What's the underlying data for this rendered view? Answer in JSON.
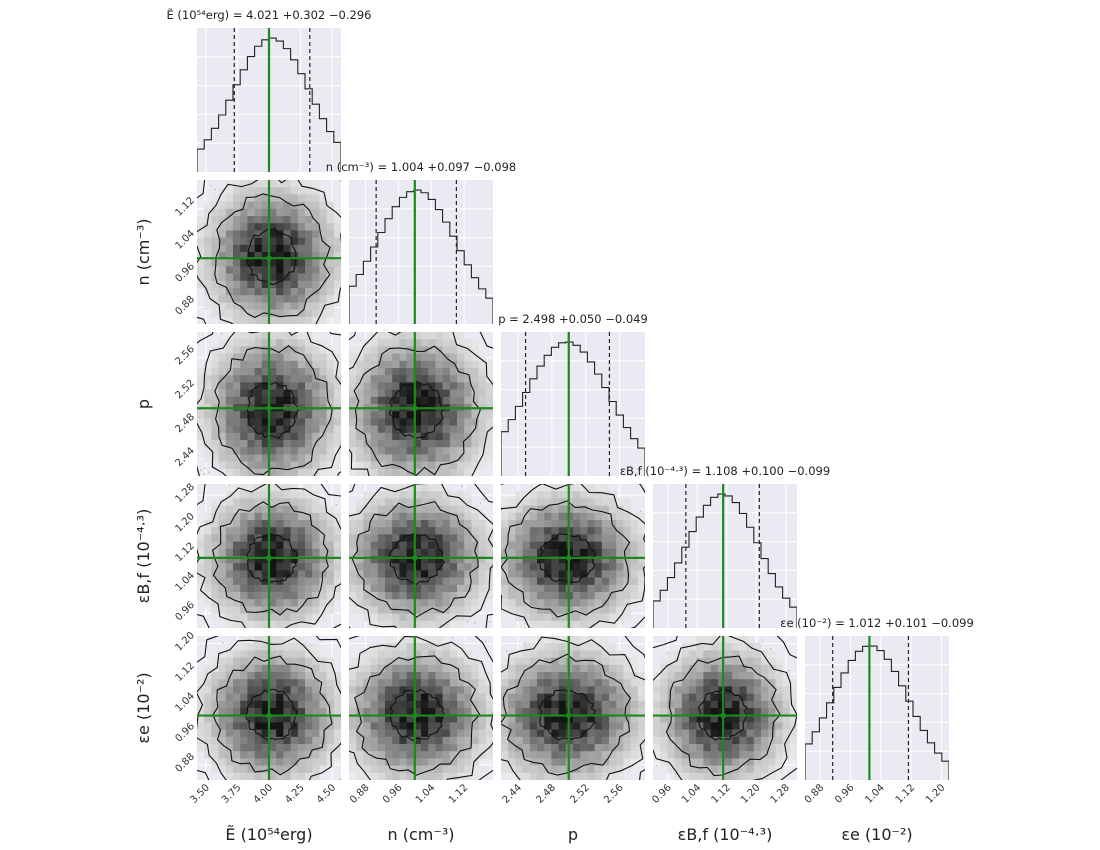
{
  "chart_data": {
    "type": "corner",
    "parameters": [
      {
        "key": "E",
        "axis_label": "Ẽ (10⁵⁴erg)",
        "title": "Ẽ (10⁵⁴erg) = 4.021 +0.302 −0.296",
        "median": 4.021,
        "err_plus": 0.302,
        "err_minus": 0.296,
        "range": [
          3.43,
          4.57
        ],
        "ticks": [
          3.5,
          3.75,
          4.0,
          4.25,
          4.5
        ],
        "tick_labels": [
          "3.50",
          "3.75",
          "4.00",
          "4.25",
          "4.50"
        ],
        "truth": 4.0
      },
      {
        "key": "n",
        "axis_label": "n (cm⁻³)",
        "title": "n (cm⁻³) = 1.004 +0.097 −0.098",
        "median": 1.004,
        "err_plus": 0.097,
        "err_minus": 0.098,
        "range": [
          0.84,
          1.19
        ],
        "ticks": [
          0.88,
          0.96,
          1.04,
          1.12
        ],
        "tick_labels": [
          "0.88",
          "0.96",
          "1.04",
          "1.12"
        ],
        "truth": 1.0
      },
      {
        "key": "p",
        "axis_label": "p",
        "title": "p = 2.498 +0.050 −0.049",
        "median": 2.498,
        "err_plus": 0.05,
        "err_minus": 0.049,
        "range": [
          2.42,
          2.59
        ],
        "ticks": [
          2.44,
          2.48,
          2.52,
          2.56
        ],
        "tick_labels": [
          "2.44",
          "2.48",
          "2.52",
          "2.56"
        ],
        "truth": 2.5
      },
      {
        "key": "eB",
        "axis_label": "εB,f (10⁻⁴·³)",
        "title": "εB,f (10⁻⁴·³) = 1.108 +0.100 −0.099",
        "median": 1.108,
        "err_plus": 0.1,
        "err_minus": 0.099,
        "range": [
          0.92,
          1.31
        ],
        "ticks": [
          0.96,
          1.04,
          1.12,
          1.2,
          1.28
        ],
        "tick_labels": [
          "0.96",
          "1.04",
          "1.12",
          "1.20",
          "1.28"
        ],
        "truth": 1.11
      },
      {
        "key": "ee",
        "axis_label": "εe (10⁻²)",
        "title": "εe (10⁻²) = 1.012 +0.101 −0.099",
        "median": 1.012,
        "err_plus": 0.101,
        "err_minus": 0.099,
        "range": [
          0.84,
          1.22
        ],
        "ticks": [
          0.88,
          0.96,
          1.04,
          1.12,
          1.2
        ],
        "tick_labels": [
          "0.88",
          "0.96",
          "1.04",
          "1.12",
          "1.20"
        ],
        "truth": 1.01
      }
    ],
    "histogram_bins": 20,
    "quantile_lines": "dashed",
    "truth_line_color": "#1b8a1b",
    "contour_levels": 4,
    "grid": true,
    "background_color": "#eaeaf2"
  }
}
